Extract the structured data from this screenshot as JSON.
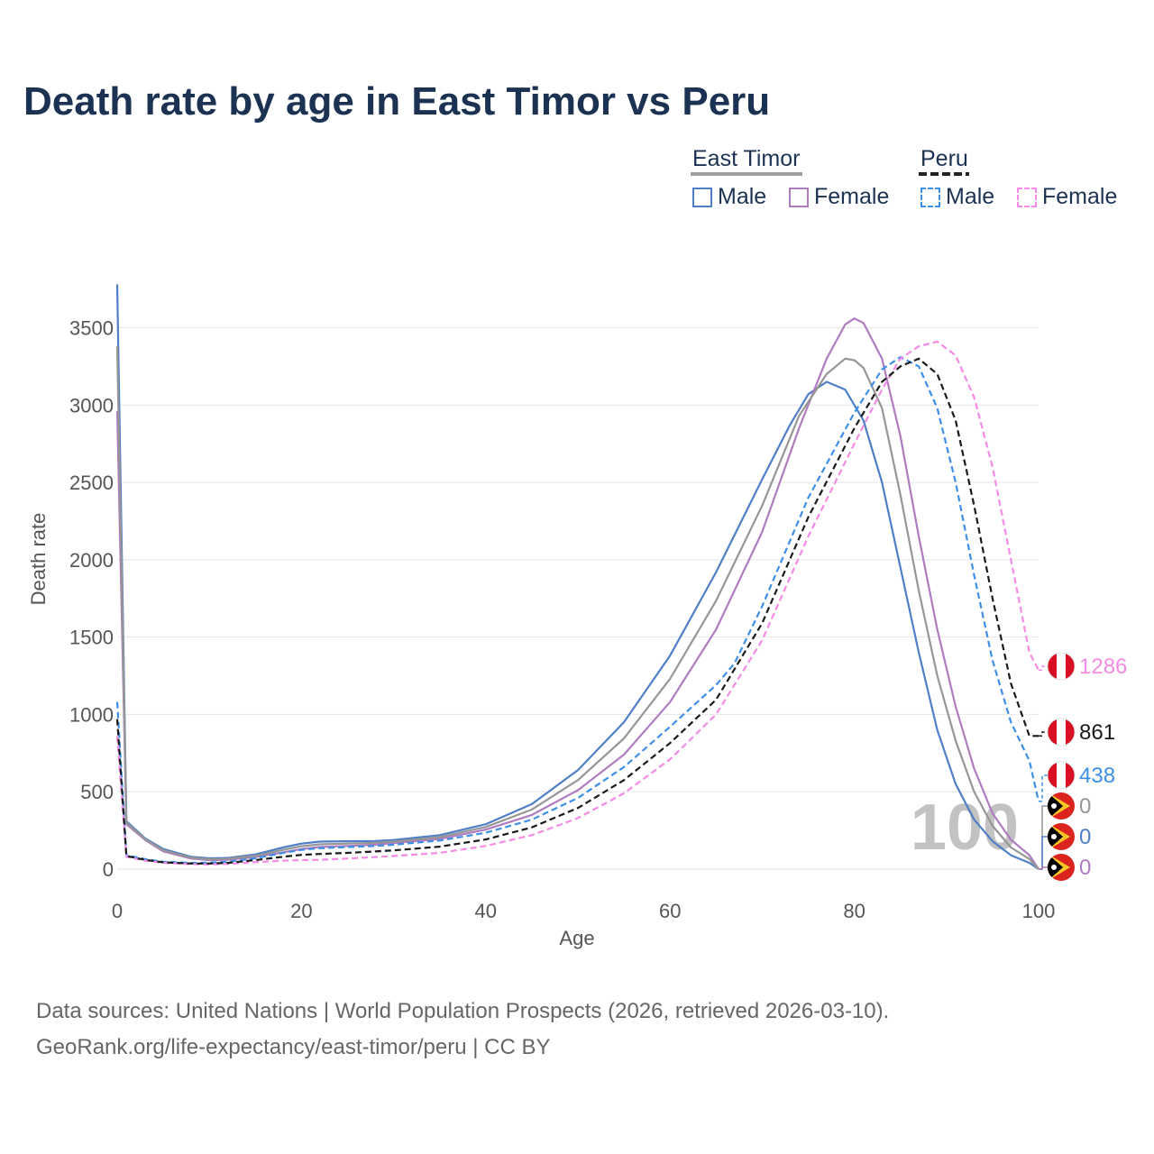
{
  "title": "Death rate by age in East Timor vs Peru",
  "legend": {
    "groups": [
      {
        "name": "East Timor",
        "underline_color": "#9e9e9e",
        "underline_style": "solid",
        "items": [
          {
            "label": "Male",
            "color": "#4f7fc7",
            "style": "solid"
          },
          {
            "label": "Female",
            "color": "#b07cc0",
            "style": "solid"
          }
        ]
      },
      {
        "name": "Peru",
        "underline_color": "#222222",
        "underline_style": "dashed",
        "items": [
          {
            "label": "Male",
            "color": "#3d8fe8",
            "style": "dashed"
          },
          {
            "label": "Female",
            "color": "#f58be6",
            "style": "dashed"
          }
        ]
      }
    ]
  },
  "watermark": "100",
  "footer": {
    "line1": "Data sources: United Nations | World Population Prospects (2026, retrieved 2026-03-10).",
    "line2": "GeoRank.org/life-expectancy/east-timor/peru | CC BY"
  },
  "icons": {
    "peru": "peru-flag-icon",
    "east_timor": "east-timor-flag-icon"
  },
  "chart_data": {
    "type": "line",
    "xlabel": "Age",
    "ylabel": "Death rate",
    "xlim": [
      0,
      100
    ],
    "ylim": [
      0,
      3800
    ],
    "xticks": [
      0,
      20,
      40,
      60,
      80,
      100
    ],
    "yticks": [
      0,
      500,
      1000,
      1500,
      2000,
      2500,
      3000,
      3500
    ],
    "grid": true,
    "series": [
      {
        "name": "East Timor Male",
        "country": "East Timor",
        "sex": "Male",
        "color": "#4f7fc7",
        "dash": false,
        "points": [
          [
            0,
            3780
          ],
          [
            1,
            310
          ],
          [
            3,
            200
          ],
          [
            5,
            130
          ],
          [
            8,
            80
          ],
          [
            10,
            70
          ],
          [
            12,
            72
          ],
          [
            15,
            95
          ],
          [
            18,
            140
          ],
          [
            20,
            165
          ],
          [
            22,
            178
          ],
          [
            25,
            180
          ],
          [
            28,
            182
          ],
          [
            30,
            188
          ],
          [
            35,
            220
          ],
          [
            40,
            290
          ],
          [
            45,
            420
          ],
          [
            50,
            640
          ],
          [
            55,
            950
          ],
          [
            60,
            1380
          ],
          [
            65,
            1920
          ],
          [
            70,
            2520
          ],
          [
            73,
            2870
          ],
          [
            75,
            3070
          ],
          [
            77,
            3150
          ],
          [
            79,
            3100
          ],
          [
            81,
            2900
          ],
          [
            83,
            2500
          ],
          [
            85,
            1950
          ],
          [
            87,
            1400
          ],
          [
            89,
            900
          ],
          [
            91,
            550
          ],
          [
            93,
            320
          ],
          [
            95,
            180
          ],
          [
            97,
            90
          ],
          [
            99,
            40
          ],
          [
            100,
            0
          ]
        ],
        "end_value": 0,
        "end_label_color": "#4f7fc7"
      },
      {
        "name": "East Timor Female",
        "country": "East Timor",
        "sex": "Female",
        "color": "#b07cc0",
        "dash": false,
        "points": [
          [
            0,
            2960
          ],
          [
            1,
            290
          ],
          [
            3,
            190
          ],
          [
            5,
            115
          ],
          [
            8,
            68
          ],
          [
            10,
            58
          ],
          [
            12,
            60
          ],
          [
            15,
            78
          ],
          [
            18,
            108
          ],
          [
            20,
            130
          ],
          [
            22,
            143
          ],
          [
            25,
            150
          ],
          [
            28,
            158
          ],
          [
            30,
            168
          ],
          [
            35,
            195
          ],
          [
            40,
            255
          ],
          [
            45,
            350
          ],
          [
            50,
            510
          ],
          [
            55,
            740
          ],
          [
            60,
            1080
          ],
          [
            65,
            1550
          ],
          [
            70,
            2180
          ],
          [
            74,
            2850
          ],
          [
            77,
            3300
          ],
          [
            79,
            3520
          ],
          [
            80,
            3560
          ],
          [
            81,
            3530
          ],
          [
            83,
            3300
          ],
          [
            85,
            2800
          ],
          [
            87,
            2150
          ],
          [
            89,
            1550
          ],
          [
            91,
            1050
          ],
          [
            93,
            650
          ],
          [
            95,
            360
          ],
          [
            97,
            190
          ],
          [
            99,
            90
          ],
          [
            100,
            0
          ]
        ],
        "end_value": 0,
        "end_label_color": "#b07cc0"
      },
      {
        "name": "East Timor Total",
        "country": "East Timor",
        "sex": "Total",
        "color": "#969696",
        "dash": false,
        "points": [
          [
            0,
            3380
          ],
          [
            1,
            300
          ],
          [
            3,
            195
          ],
          [
            5,
            122
          ],
          [
            8,
            74
          ],
          [
            10,
            64
          ],
          [
            12,
            66
          ],
          [
            15,
            86
          ],
          [
            18,
            124
          ],
          [
            20,
            148
          ],
          [
            22,
            160
          ],
          [
            25,
            165
          ],
          [
            28,
            170
          ],
          [
            30,
            178
          ],
          [
            35,
            207
          ],
          [
            40,
            272
          ],
          [
            45,
            385
          ],
          [
            50,
            575
          ],
          [
            55,
            845
          ],
          [
            60,
            1230
          ],
          [
            65,
            1735
          ],
          [
            70,
            2350
          ],
          [
            74,
            2930
          ],
          [
            77,
            3200
          ],
          [
            79,
            3300
          ],
          [
            80,
            3290
          ],
          [
            81,
            3240
          ],
          [
            83,
            2980
          ],
          [
            85,
            2420
          ],
          [
            87,
            1800
          ],
          [
            89,
            1250
          ],
          [
            91,
            830
          ],
          [
            93,
            500
          ],
          [
            95,
            280
          ],
          [
            97,
            140
          ],
          [
            99,
            65
          ],
          [
            100,
            0
          ]
        ],
        "end_value": 0,
        "end_label_color": "#969696"
      },
      {
        "name": "Peru Male",
        "country": "Peru",
        "sex": "Male",
        "color": "#3d8fe8",
        "dash": true,
        "points": [
          [
            0,
            1080
          ],
          [
            1,
            90
          ],
          [
            3,
            65
          ],
          [
            5,
            48
          ],
          [
            8,
            40
          ],
          [
            10,
            42
          ],
          [
            12,
            48
          ],
          [
            15,
            70
          ],
          [
            18,
            105
          ],
          [
            20,
            125
          ],
          [
            22,
            135
          ],
          [
            25,
            142
          ],
          [
            28,
            150
          ],
          [
            30,
            158
          ],
          [
            35,
            185
          ],
          [
            40,
            235
          ],
          [
            45,
            320
          ],
          [
            50,
            460
          ],
          [
            55,
            660
          ],
          [
            60,
            920
          ],
          [
            65,
            1190
          ],
          [
            67,
            1330
          ],
          [
            70,
            1700
          ],
          [
            75,
            2400
          ],
          [
            80,
            2950
          ],
          [
            83,
            3230
          ],
          [
            85,
            3310
          ],
          [
            87,
            3250
          ],
          [
            89,
            2980
          ],
          [
            91,
            2500
          ],
          [
            93,
            1900
          ],
          [
            95,
            1350
          ],
          [
            97,
            950
          ],
          [
            99,
            700
          ],
          [
            100,
            438
          ]
        ],
        "end_value": 438,
        "end_label_color": "#3d8fe8"
      },
      {
        "name": "Peru Female",
        "country": "Peru",
        "sex": "Female",
        "color": "#f58be6",
        "dash": true,
        "points": [
          [
            0,
            860
          ],
          [
            1,
            80
          ],
          [
            3,
            55
          ],
          [
            5,
            40
          ],
          [
            8,
            32
          ],
          [
            10,
            30
          ],
          [
            12,
            33
          ],
          [
            15,
            45
          ],
          [
            18,
            55
          ],
          [
            20,
            58
          ],
          [
            22,
            60
          ],
          [
            25,
            68
          ],
          [
            28,
            78
          ],
          [
            30,
            85
          ],
          [
            35,
            105
          ],
          [
            40,
            150
          ],
          [
            45,
            220
          ],
          [
            50,
            330
          ],
          [
            55,
            490
          ],
          [
            60,
            710
          ],
          [
            65,
            1000
          ],
          [
            70,
            1480
          ],
          [
            75,
            2150
          ],
          [
            80,
            2750
          ],
          [
            83,
            3100
          ],
          [
            85,
            3300
          ],
          [
            87,
            3380
          ],
          [
            89,
            3410
          ],
          [
            91,
            3320
          ],
          [
            93,
            3050
          ],
          [
            95,
            2600
          ],
          [
            97,
            2000
          ],
          [
            99,
            1400
          ],
          [
            100,
            1286
          ]
        ],
        "end_value": 1286,
        "end_label_color": "#f58be6"
      },
      {
        "name": "Peru Total",
        "country": "Peru",
        "sex": "Total",
        "color": "#1a1a1a",
        "dash": true,
        "points": [
          [
            0,
            970
          ],
          [
            1,
            85
          ],
          [
            3,
            60
          ],
          [
            5,
            44
          ],
          [
            8,
            36
          ],
          [
            10,
            36
          ],
          [
            12,
            40
          ],
          [
            15,
            58
          ],
          [
            18,
            80
          ],
          [
            20,
            92
          ],
          [
            22,
            98
          ],
          [
            25,
            105
          ],
          [
            28,
            114
          ],
          [
            30,
            121
          ],
          [
            35,
            145
          ],
          [
            40,
            192
          ],
          [
            45,
            270
          ],
          [
            50,
            395
          ],
          [
            55,
            575
          ],
          [
            60,
            815
          ],
          [
            65,
            1095
          ],
          [
            70,
            1590
          ],
          [
            75,
            2275
          ],
          [
            80,
            2850
          ],
          [
            83,
            3150
          ],
          [
            85,
            3250
          ],
          [
            87,
            3300
          ],
          [
            89,
            3200
          ],
          [
            91,
            2900
          ],
          [
            93,
            2350
          ],
          [
            95,
            1750
          ],
          [
            97,
            1200
          ],
          [
            99,
            861
          ],
          [
            100,
            861
          ]
        ],
        "end_value": 861,
        "end_label_color": "#1a1a1a"
      }
    ]
  }
}
